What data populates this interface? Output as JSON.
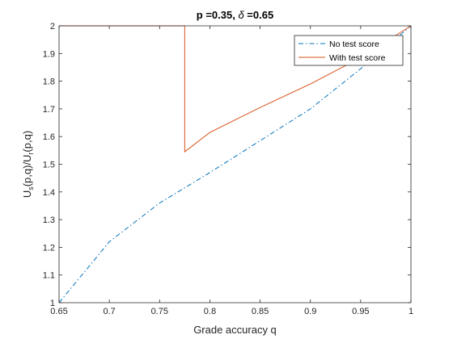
{
  "chart_data": {
    "type": "line",
    "title_text": "p =0.35, ",
    "title_symbol": "δ",
    "title_tail": " =0.65",
    "xlabel": "Grade accuracy q",
    "ylabel_prefix": "U",
    "ylabel_sub1": "s",
    "ylabel_mid": "(p,q)/U",
    "ylabel_sub2": "r",
    "ylabel_suffix": "(p,q)",
    "xlim": [
      0.65,
      1.0
    ],
    "ylim": [
      1.0,
      2.0
    ],
    "xticks": [
      0.65,
      0.7,
      0.75,
      0.8,
      0.85,
      0.9,
      0.95,
      1
    ],
    "xtick_labels": [
      "0.65",
      "0.7",
      "0.75",
      "0.8",
      "0.85",
      "0.9",
      "0.95",
      "1"
    ],
    "yticks": [
      1,
      1.1,
      1.2,
      1.3,
      1.4,
      1.5,
      1.6,
      1.7,
      1.8,
      1.9,
      2
    ],
    "ytick_labels": [
      "1",
      "1.1",
      "1.2",
      "1.3",
      "1.4",
      "1.5",
      "1.6",
      "1.7",
      "1.8",
      "1.9",
      "2"
    ],
    "grid": false,
    "legend_position": "top-right",
    "series": [
      {
        "name": "No test score",
        "color": "#0072BD",
        "style": "dash-dot",
        "x": [
          0.65,
          0.7,
          0.75,
          0.775,
          0.8,
          0.85,
          0.9,
          0.95,
          1.0
        ],
        "y": [
          1.0,
          1.22,
          1.36,
          1.415,
          1.47,
          1.585,
          1.7,
          1.845,
          2.0
        ]
      },
      {
        "name": "With test score",
        "color": "#D95319",
        "style": "solid",
        "x": [
          0.65,
          0.775,
          0.775,
          0.8,
          0.85,
          0.9,
          0.95,
          1.0
        ],
        "y": [
          2.0,
          2.0,
          1.545,
          1.615,
          1.705,
          1.79,
          1.885,
          2.0
        ]
      }
    ]
  }
}
